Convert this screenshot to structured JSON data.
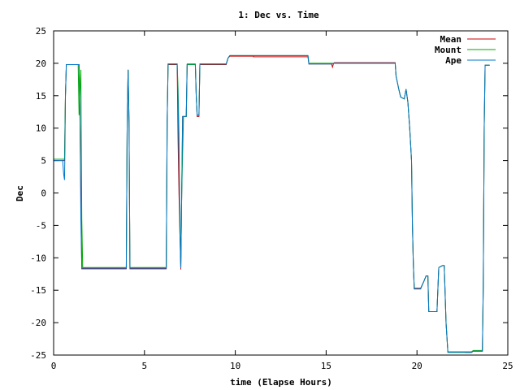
{
  "chart_data": {
    "type": "line",
    "title": "1: Dec vs. Time",
    "xlabel": "time (Elapse Hours)",
    "ylabel": "Dec",
    "xlim": [
      0,
      25
    ],
    "ylim": [
      -25,
      25
    ],
    "xticks": [
      0,
      5,
      10,
      15,
      20,
      25
    ],
    "yticks": [
      25,
      20,
      15,
      10,
      5,
      0,
      -5,
      -10,
      -15,
      -20,
      -25
    ],
    "grid": false,
    "legend_position": "top-right",
    "series": [
      {
        "name": "Mean",
        "color": "#cc0000",
        "points": [
          [
            0,
            5
          ],
          [
            0.6,
            5
          ],
          [
            0.65,
            15
          ],
          [
            0.7,
            19.8
          ],
          [
            1.3,
            19.8
          ],
          [
            1.4,
            19.8
          ],
          [
            1.45,
            12
          ],
          [
            1.5,
            0
          ],
          [
            1.55,
            -11.7
          ],
          [
            4.0,
            -11.7
          ],
          [
            4.05,
            11
          ],
          [
            4.1,
            19
          ],
          [
            4.15,
            11
          ],
          [
            4.2,
            -11.7
          ],
          [
            6.2,
            -11.7
          ],
          [
            6.25,
            11
          ],
          [
            6.3,
            19.8
          ],
          [
            6.8,
            19.8
          ],
          [
            6.85,
            8
          ],
          [
            6.9,
            0
          ],
          [
            7.0,
            -11.8
          ],
          [
            7.05,
            0
          ],
          [
            7.1,
            11.8
          ],
          [
            7.3,
            11.8
          ],
          [
            7.35,
            19.8
          ],
          [
            7.8,
            19.8
          ],
          [
            7.85,
            15
          ],
          [
            7.9,
            11.8
          ],
          [
            8.0,
            11.8
          ],
          [
            8.05,
            19.8
          ],
          [
            9.5,
            19.8
          ],
          [
            9.6,
            20.8
          ],
          [
            9.7,
            21.1
          ],
          [
            11,
            21.1
          ],
          [
            11.0,
            21.0
          ],
          [
            12.8,
            21.0
          ],
          [
            12.9,
            21.0
          ],
          [
            14.0,
            21.0
          ],
          [
            14.05,
            19.9
          ],
          [
            15.3,
            19.9
          ],
          [
            15.35,
            19.4
          ],
          [
            15.4,
            19.9
          ],
          [
            15.45,
            20.1
          ],
          [
            18.8,
            20.1
          ],
          [
            18.85,
            18
          ],
          [
            19.0,
            16
          ],
          [
            19.1,
            14.8
          ],
          [
            19.3,
            14.5
          ],
          [
            19.4,
            16
          ],
          [
            19.5,
            14
          ],
          [
            19.6,
            10
          ],
          [
            19.7,
            5
          ],
          [
            19.75,
            -5
          ],
          [
            19.8,
            -11
          ],
          [
            19.85,
            -14.7
          ],
          [
            20.2,
            -14.7
          ],
          [
            20.4,
            -13.5
          ],
          [
            20.5,
            -12.8
          ],
          [
            20.6,
            -12.8
          ],
          [
            20.65,
            -18.3
          ],
          [
            21.1,
            -18.3
          ],
          [
            21.2,
            -11.5
          ],
          [
            21.4,
            -11.2
          ],
          [
            21.5,
            -11.2
          ],
          [
            21.6,
            -20
          ],
          [
            21.7,
            -24.5
          ],
          [
            22.6,
            -24.5
          ],
          [
            22.65,
            -24.6
          ],
          [
            23.0,
            -24.6
          ],
          [
            23.1,
            -24.4
          ],
          [
            23.6,
            -24.4
          ],
          [
            23.65,
            -14
          ],
          [
            23.7,
            10
          ],
          [
            23.75,
            19.7
          ],
          [
            24.0,
            19.7
          ]
        ]
      },
      {
        "name": "Mount",
        "color": "#00aa00",
        "points": [
          [
            0,
            5.2
          ],
          [
            0.6,
            5.2
          ],
          [
            0.65,
            15
          ],
          [
            0.7,
            19.8
          ],
          [
            1.3,
            19.8
          ],
          [
            1.35,
            19.8
          ],
          [
            1.4,
            12
          ],
          [
            1.5,
            19
          ],
          [
            1.55,
            -4
          ],
          [
            1.6,
            -11.5
          ],
          [
            4.0,
            -11.5
          ],
          [
            4.05,
            11
          ],
          [
            4.1,
            19
          ],
          [
            4.15,
            11
          ],
          [
            4.2,
            -11.5
          ],
          [
            6.2,
            -11.5
          ],
          [
            6.25,
            11
          ],
          [
            6.3,
            19.9
          ],
          [
            6.8,
            19.9
          ],
          [
            6.85,
            16
          ],
          [
            6.9,
            9
          ],
          [
            6.95,
            -6
          ],
          [
            7.0,
            -11.5
          ],
          [
            7.05,
            0
          ],
          [
            7.15,
            11.8
          ],
          [
            7.3,
            11.8
          ],
          [
            7.35,
            19.8
          ],
          [
            7.8,
            19.8
          ],
          [
            7.85,
            15
          ],
          [
            7.9,
            12
          ],
          [
            8.0,
            12
          ],
          [
            8.05,
            19.9
          ],
          [
            9.5,
            19.9
          ],
          [
            9.6,
            20.8
          ],
          [
            9.7,
            21.2
          ],
          [
            14.0,
            21.2
          ],
          [
            14.05,
            20.0
          ],
          [
            18.8,
            20.0
          ],
          [
            18.85,
            18
          ],
          [
            19.0,
            16
          ],
          [
            19.1,
            14.8
          ],
          [
            19.3,
            14.5
          ],
          [
            19.4,
            16
          ],
          [
            19.5,
            14
          ],
          [
            19.6,
            10
          ],
          [
            19.7,
            5
          ],
          [
            19.75,
            -5
          ],
          [
            19.8,
            -11
          ],
          [
            19.85,
            -14.8
          ],
          [
            20.2,
            -14.8
          ],
          [
            20.4,
            -13.5
          ],
          [
            20.5,
            -12.8
          ],
          [
            20.6,
            -12.8
          ],
          [
            20.65,
            -18.3
          ],
          [
            21.1,
            -18.3
          ],
          [
            21.2,
            -11.5
          ],
          [
            21.4,
            -11.2
          ],
          [
            21.5,
            -11.2
          ],
          [
            21.6,
            -20
          ],
          [
            21.7,
            -24.5
          ],
          [
            23.0,
            -24.5
          ],
          [
            23.1,
            -24.3
          ],
          [
            23.6,
            -24.3
          ],
          [
            23.65,
            -14
          ],
          [
            23.7,
            10
          ],
          [
            23.75,
            19.7
          ],
          [
            24.0,
            19.7
          ]
        ]
      },
      {
        "name": "Ape",
        "color": "#0077cc",
        "points": [
          [
            0,
            5
          ],
          [
            0.5,
            5
          ],
          [
            0.55,
            3
          ],
          [
            0.6,
            2
          ],
          [
            0.62,
            6
          ],
          [
            0.65,
            15
          ],
          [
            0.7,
            19.8
          ],
          [
            1.3,
            19.8
          ],
          [
            1.4,
            19.8
          ],
          [
            1.45,
            12
          ],
          [
            1.5,
            -4
          ],
          [
            1.55,
            -11.6
          ],
          [
            4.0,
            -11.6
          ],
          [
            4.05,
            11
          ],
          [
            4.1,
            19
          ],
          [
            4.15,
            11
          ],
          [
            4.2,
            -11.6
          ],
          [
            6.2,
            -11.6
          ],
          [
            6.25,
            11
          ],
          [
            6.3,
            19.9
          ],
          [
            6.8,
            19.9
          ],
          [
            6.85,
            14
          ],
          [
            6.9,
            5
          ],
          [
            7.0,
            -11.6
          ],
          [
            7.05,
            0
          ],
          [
            7.1,
            11.8
          ],
          [
            7.3,
            11.8
          ],
          [
            7.35,
            19.9
          ],
          [
            7.8,
            19.9
          ],
          [
            7.85,
            15
          ],
          [
            7.9,
            12
          ],
          [
            8.0,
            12
          ],
          [
            8.05,
            19.9
          ],
          [
            9.5,
            19.9
          ],
          [
            9.6,
            20.8
          ],
          [
            9.7,
            21.2
          ],
          [
            14.0,
            21.2
          ],
          [
            14.05,
            19.9
          ],
          [
            15.3,
            19.9
          ],
          [
            15.4,
            20.0
          ],
          [
            18.8,
            20.0
          ],
          [
            18.85,
            18
          ],
          [
            19.0,
            16
          ],
          [
            19.1,
            14.8
          ],
          [
            19.3,
            14.5
          ],
          [
            19.4,
            16
          ],
          [
            19.5,
            14
          ],
          [
            19.6,
            10
          ],
          [
            19.7,
            5
          ],
          [
            19.75,
            -5
          ],
          [
            19.8,
            -11
          ],
          [
            19.85,
            -14.8
          ],
          [
            20.2,
            -14.8
          ],
          [
            20.4,
            -13.5
          ],
          [
            20.5,
            -12.8
          ],
          [
            20.6,
            -12.8
          ],
          [
            20.65,
            -18.3
          ],
          [
            21.1,
            -18.3
          ],
          [
            21.2,
            -11.5
          ],
          [
            21.4,
            -11.2
          ],
          [
            21.5,
            -11.2
          ],
          [
            21.6,
            -20
          ],
          [
            21.7,
            -24.6
          ],
          [
            23.0,
            -24.6
          ],
          [
            23.1,
            -24.4
          ],
          [
            23.6,
            -24.4
          ],
          [
            23.65,
            -14
          ],
          [
            23.7,
            10
          ],
          [
            23.75,
            19.7
          ],
          [
            24.0,
            19.7
          ]
        ]
      }
    ]
  }
}
